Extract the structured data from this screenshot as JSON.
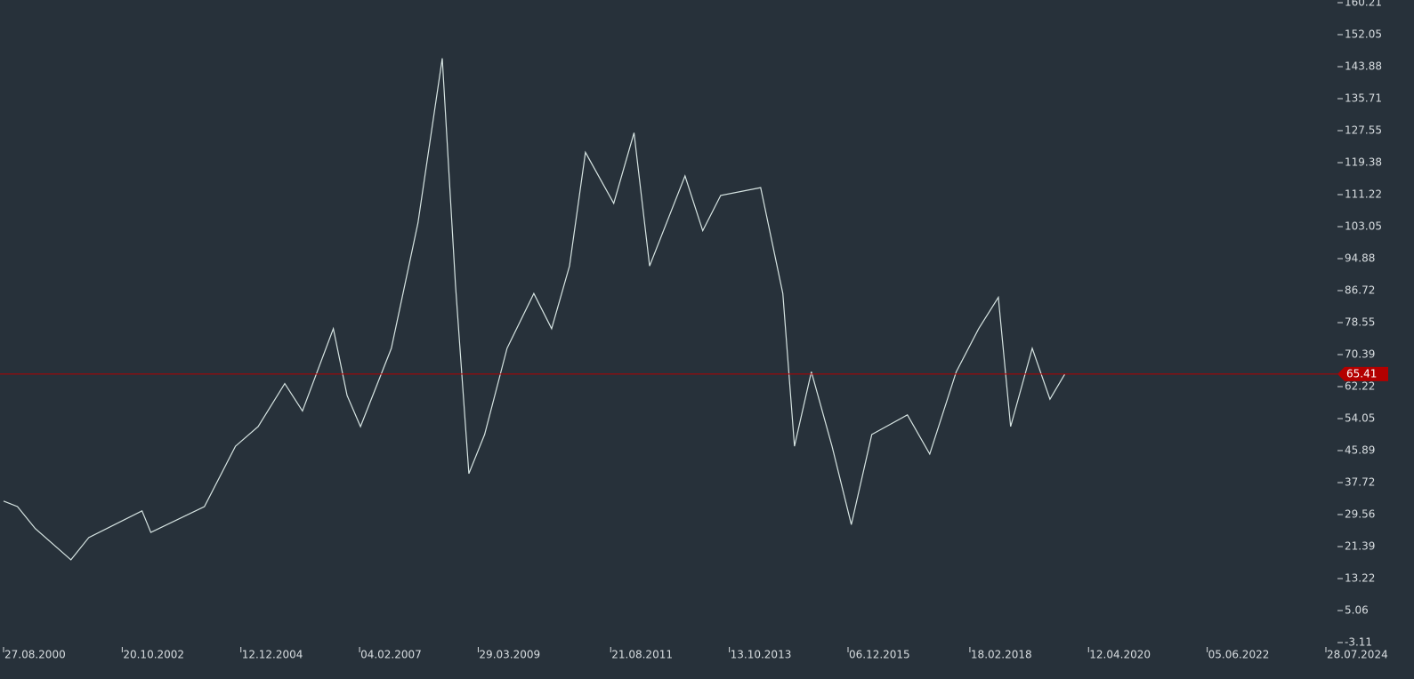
{
  "chart_data": {
    "type": "line",
    "x": [
      "27.08.2000",
      "27.11.2000",
      "24.03.2001",
      "15.11.2001",
      "13.03.2002",
      "28.02.2003",
      "27.04.2003",
      "15.04.2004",
      "06.11.2004",
      "05.04.2005",
      "28.09.2005",
      "23.01.2006",
      "15.08.2006",
      "13.11.2006",
      "10.02.2007",
      "02.09.2007",
      "25.02.2008",
      "03.08.2008",
      "30.10.2008",
      "26.01.2009",
      "10.05.2009",
      "05.10.2009",
      "31.03.2010",
      "27.07.2010",
      "22.11.2010",
      "07.03.2011",
      "10.09.2011",
      "22.01.2012",
      "04.05.2012",
      "24.12.2012",
      "20.04.2013",
      "17.08.2013",
      "08.05.2014",
      "01.10.2014",
      "17.12.2014",
      "08.04.2015",
      "22.08.2015",
      "28.12.2015",
      "11.05.2016",
      "01.01.2017",
      "29.05.2017",
      "20.11.2017",
      "17.04.2018",
      "25.08.2018",
      "14.11.2018",
      "06.04.2019",
      "01.08.2019",
      "07.11.2019"
    ],
    "series": [
      {
        "color": "#d6e4e2",
        "values": [
          33,
          31.6,
          26,
          18,
          23.7,
          30.5,
          25,
          31.6,
          47,
          52,
          63,
          56,
          77,
          60,
          52,
          72,
          104,
          146,
          88,
          40,
          50,
          72,
          86,
          77,
          93,
          122,
          109,
          127,
          93,
          116,
          102,
          111,
          113,
          86,
          47,
          66,
          47,
          27,
          50,
          55,
          45,
          66,
          77,
          85,
          52,
          72,
          59,
          65.41
        ]
      }
    ],
    "xlim": [
      "27.08.2000",
      "28.07.2024"
    ],
    "xticks": [
      "27.08.2000",
      "20.10.2002",
      "12.12.2004",
      "04.02.2007",
      "29.03.2009",
      "21.08.2011",
      "13.10.2013",
      "06.12.2015",
      "18.02.2018",
      "12.04.2020",
      "05.06.2022",
      "28.07.2024"
    ],
    "ylim": [
      -3.11,
      160.21
    ],
    "yticks": [
      160.21,
      152.05,
      143.88,
      135.71,
      127.55,
      119.38,
      111.22,
      103.05,
      94.88,
      86.72,
      78.55,
      70.39,
      62.22,
      54.05,
      45.89,
      37.72,
      29.56,
      21.39,
      13.22,
      5.06,
      -3.11
    ],
    "price_line": {
      "value": 65.41,
      "color": "#b30000"
    }
  }
}
